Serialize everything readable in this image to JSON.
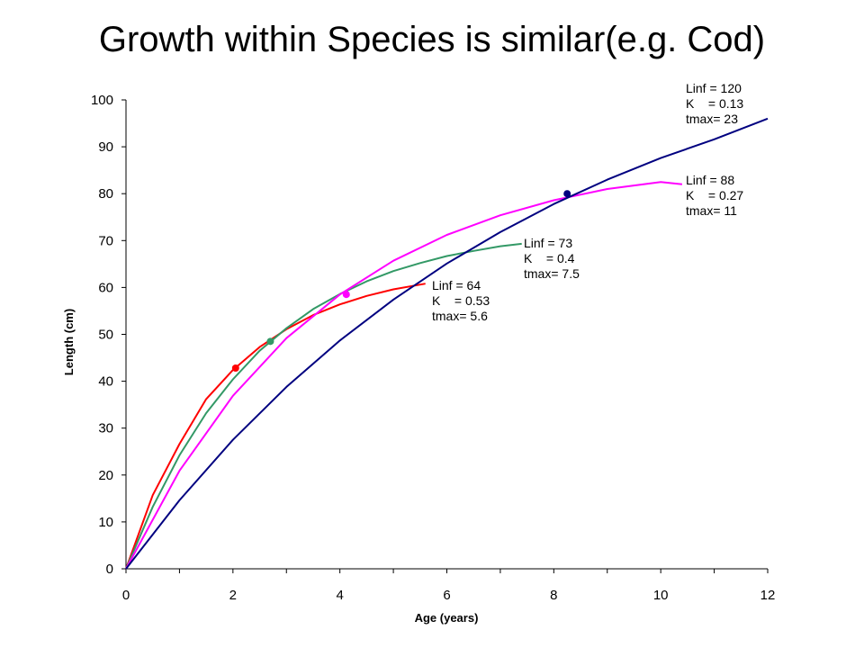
{
  "slide": {
    "title": "Growth within Species is similar(e.g. Cod)"
  },
  "chart_data": {
    "type": "line",
    "title": "",
    "xlabel": "Age (years)",
    "ylabel": "Length (cm)",
    "xlim": [
      0,
      12
    ],
    "ylim": [
      0,
      100
    ],
    "xticks": [
      0,
      2,
      4,
      6,
      8,
      10,
      12
    ],
    "yticks": [
      0,
      10,
      20,
      30,
      40,
      50,
      60,
      70,
      80,
      90,
      100
    ],
    "x_minor_step": 1,
    "grid": false,
    "legend": "none",
    "series": [
      {
        "color": "#ff0000",
        "x": [
          0,
          0.5,
          1,
          1.5,
          2,
          2.5,
          3,
          3.5,
          4,
          4.5,
          5,
          5.6
        ],
        "y": [
          0,
          15.7,
          26.6,
          36.2,
          42.4,
          47.3,
          51.1,
          54.1,
          56.4,
          58.2,
          59.6,
          60.8
        ],
        "marker": {
          "x": 2.05,
          "y": 42.8
        },
        "annotation": [
          "Linf = 64",
          "K    = 0.53",
          "tmax= 5.6"
        ]
      },
      {
        "color": "#339966",
        "x": [
          0,
          0.5,
          1,
          1.5,
          2,
          2.5,
          3,
          3.5,
          4,
          4.5,
          5,
          5.5,
          6,
          6.5,
          7,
          7.4
        ],
        "y": [
          0,
          13.2,
          24.2,
          33.2,
          40.4,
          46.5,
          51.3,
          55.4,
          58.6,
          61.3,
          63.5,
          65.2,
          66.7,
          67.8,
          68.8,
          69.3
        ],
        "marker": {
          "x": 2.7,
          "y": 48.5
        },
        "annotation": [
          "Linf = 73",
          "K    = 0.4",
          "tmax= 7.5"
        ]
      },
      {
        "color": "#ff00ff",
        "x": [
          0,
          1,
          2,
          3,
          4,
          5,
          6,
          7,
          8,
          9,
          10,
          10.4
        ],
        "y": [
          0,
          20.9,
          36.9,
          49.2,
          58.5,
          65.7,
          71.2,
          75.4,
          78.6,
          81.0,
          82.5,
          82.0
        ],
        "marker": {
          "x": 4.12,
          "y": 58.5
        },
        "annotation": [
          "Linf = 88",
          "K    = 0.27",
          "tmax= 11"
        ]
      },
      {
        "color": "#000080",
        "x": [
          0,
          1,
          2,
          3,
          4,
          5,
          6,
          7,
          8,
          9,
          10,
          11,
          12
        ],
        "y": [
          0,
          14.6,
          27.5,
          38.8,
          48.7,
          57.4,
          65.1,
          71.8,
          77.8,
          83.0,
          87.6,
          91.6,
          96.0
        ],
        "marker": {
          "x": 8.25,
          "y": 80.0
        },
        "annotation": [
          "Linf = 120",
          "K    = 0.13",
          "tmax= 23"
        ]
      }
    ]
  }
}
